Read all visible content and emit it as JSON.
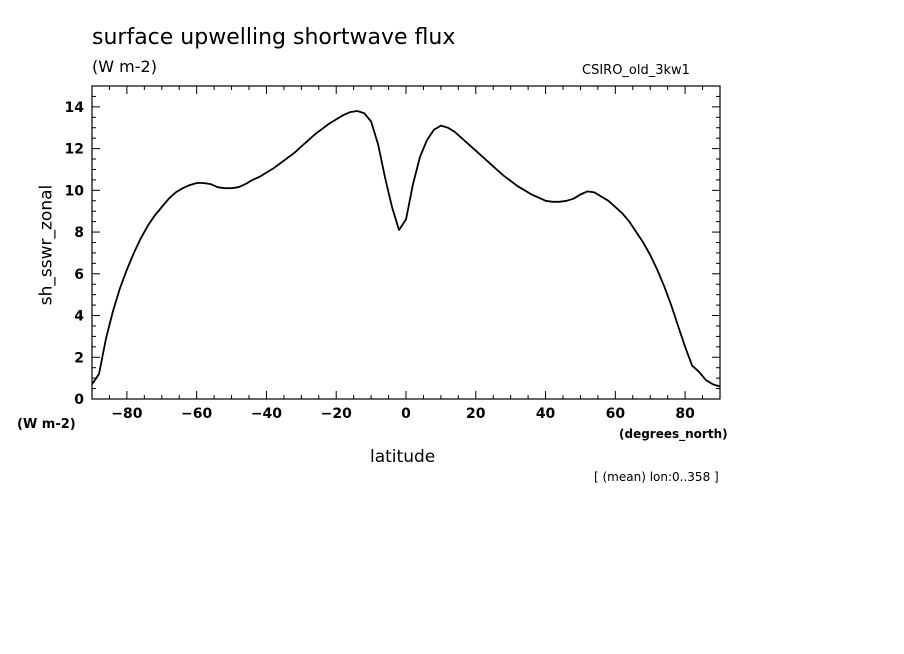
{
  "chart_data": {
    "type": "line",
    "title": "surface upwelling shortwave flux",
    "units": "(W m-2)",
    "model_label": "CSIRO_old_3kw1",
    "ylabel": "sh_sswr_zonal",
    "yunits": "(W m-2)",
    "xlabel": "latitude",
    "xunits": "(degrees_north)",
    "footnote": "[ (mean) lon:0..358 ]",
    "xlim": [
      -90,
      90
    ],
    "ylim": [
      0,
      15
    ],
    "xticks": [
      -80,
      -60,
      -40,
      -20,
      0,
      20,
      40,
      60,
      80
    ],
    "yticks": [
      0,
      2,
      4,
      6,
      8,
      10,
      12,
      14
    ],
    "grid": false,
    "legend": "none",
    "line_color": "#000000",
    "series": [
      {
        "x": [
          -90,
          -88,
          -86,
          -84,
          -82,
          -80,
          -78,
          -76,
          -74,
          -72,
          -70,
          -68,
          -66,
          -64,
          -62,
          -60,
          -58,
          -56,
          -54,
          -52,
          -50,
          -48,
          -46,
          -44,
          -42,
          -40,
          -38,
          -36,
          -34,
          -32,
          -30,
          -28,
          -26,
          -24,
          -22,
          -20,
          -18,
          -16,
          -14,
          -12,
          -10,
          -8,
          -6,
          -4,
          -2,
          0,
          2,
          4,
          6,
          8,
          10,
          12,
          14,
          16,
          18,
          20,
          22,
          24,
          26,
          28,
          30,
          32,
          34,
          36,
          38,
          40,
          42,
          44,
          46,
          48,
          50,
          52,
          54,
          56,
          58,
          60,
          62,
          64,
          66,
          68,
          70,
          72,
          74,
          76,
          78,
          80,
          82,
          84,
          86,
          88,
          90
        ],
        "y": [
          0.7,
          1.2,
          2.9,
          4.2,
          5.3,
          6.2,
          7.0,
          7.7,
          8.3,
          8.8,
          9.2,
          9.6,
          9.9,
          10.1,
          10.25,
          10.35,
          10.35,
          10.3,
          10.15,
          10.1,
          10.1,
          10.15,
          10.3,
          10.5,
          10.65,
          10.85,
          11.05,
          11.3,
          11.55,
          11.8,
          12.1,
          12.4,
          12.7,
          12.95,
          13.2,
          13.4,
          13.6,
          13.75,
          13.8,
          13.7,
          13.3,
          12.2,
          10.6,
          9.2,
          8.1,
          8.6,
          10.3,
          11.6,
          12.4,
          12.9,
          13.1,
          13.0,
          12.8,
          12.5,
          12.2,
          11.9,
          11.6,
          11.3,
          11.0,
          10.7,
          10.45,
          10.2,
          10.0,
          9.8,
          9.65,
          9.5,
          9.45,
          9.45,
          9.5,
          9.6,
          9.8,
          9.95,
          9.9,
          9.7,
          9.5,
          9.2,
          8.9,
          8.5,
          8.0,
          7.5,
          6.9,
          6.2,
          5.4,
          4.5,
          3.5,
          2.5,
          1.6,
          1.3,
          0.9,
          0.7,
          0.6
        ]
      }
    ]
  }
}
